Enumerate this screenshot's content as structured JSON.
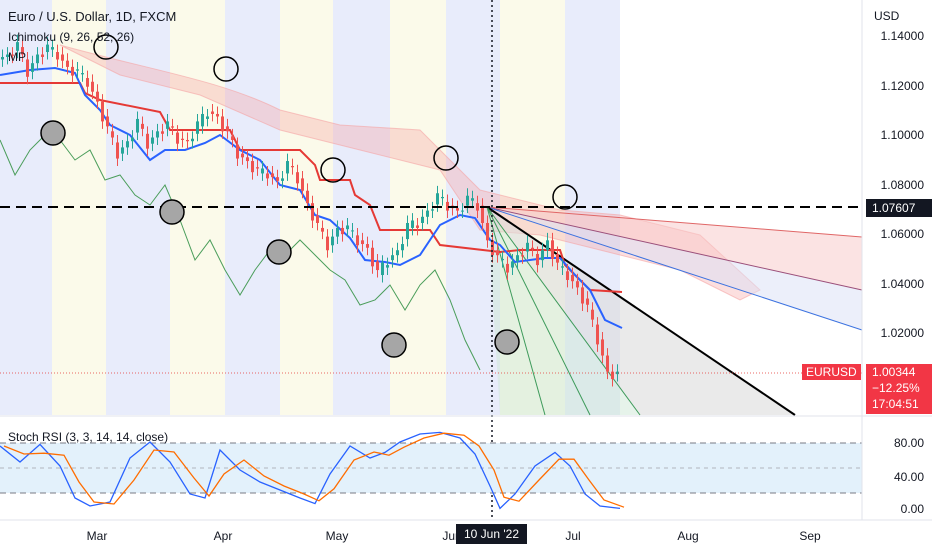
{
  "header": {
    "symbol_line": "Euro / U.S. Dollar, 1D, FXCM",
    "indicator_1": "Ichimoku (9, 26, 52, 26)",
    "indicator_2": "MP",
    "currency": "USD"
  },
  "price_axis": {
    "ticks": [
      "1.14000",
      "1.12000",
      "1.10000",
      "1.08000",
      "1.06000",
      "1.04000",
      "1.02000"
    ],
    "tick_values": [
      1.14,
      1.12,
      1.1,
      1.08,
      1.06,
      1.04,
      1.02
    ],
    "min": 0.9875,
    "max": 1.155
  },
  "labels": {
    "level_value": "1.07607",
    "symbol_tag": "EURUSD",
    "last_price": "1.00344",
    "change_pct": "−12.25%",
    "countdown": "17:04:51",
    "crosshair_date": "10 Jun '22"
  },
  "oscillator": {
    "title": "Stoch RSI (3, 3, 14, 14, close)",
    "ticks": [
      "80.00",
      "40.00",
      "0.00"
    ],
    "tick_values": [
      80,
      40,
      0
    ],
    "upper_band": 80,
    "mid_band": 50,
    "lower_band": 20
  },
  "time_axis": {
    "months": [
      "Mar",
      "Apr",
      "May",
      "Jun",
      "Jul",
      "Aug",
      "Sep"
    ]
  },
  "chart_data": {
    "type": "candlestick",
    "title": "Euro / U.S. Dollar, 1D, FXCM",
    "horizontal_level": 1.07607,
    "last_close": 1.00344,
    "price_series_approx": [
      [
        0,
        1.131
      ],
      [
        10,
        1.133
      ],
      [
        20,
        1.136
      ],
      [
        30,
        1.126
      ],
      [
        40,
        1.133
      ],
      [
        50,
        1.135
      ],
      [
        60,
        1.133
      ],
      [
        70,
        1.128
      ],
      [
        80,
        1.125
      ],
      [
        90,
        1.122
      ],
      [
        100,
        1.114
      ],
      [
        110,
        1.102
      ],
      [
        120,
        1.093
      ],
      [
        130,
        1.098
      ],
      [
        140,
        1.105
      ],
      [
        150,
        1.097
      ],
      [
        160,
        1.102
      ],
      [
        170,
        1.104
      ],
      [
        180,
        1.099
      ],
      [
        190,
        1.098
      ],
      [
        200,
        1.104
      ],
      [
        210,
        1.11
      ],
      [
        220,
        1.108
      ],
      [
        230,
        1.1
      ],
      [
        240,
        1.093
      ],
      [
        250,
        1.09
      ],
      [
        260,
        1.085
      ],
      [
        270,
        1.085
      ],
      [
        280,
        1.082
      ],
      [
        290,
        1.088
      ],
      [
        300,
        1.083
      ],
      [
        310,
        1.073
      ],
      [
        320,
        1.063
      ],
      [
        330,
        1.056
      ],
      [
        340,
        1.063
      ],
      [
        350,
        1.062
      ],
      [
        360,
        1.058
      ],
      [
        370,
        1.055
      ],
      [
        380,
        1.044
      ],
      [
        390,
        1.05
      ],
      [
        400,
        1.054
      ],
      [
        410,
        1.063
      ],
      [
        420,
        1.065
      ],
      [
        430,
        1.07
      ],
      [
        440,
        1.075
      ],
      [
        450,
        1.072
      ],
      [
        460,
        1.07
      ],
      [
        470,
        1.074
      ],
      [
        480,
        1.072
      ],
      [
        490,
        1.058
      ],
      [
        500,
        1.05
      ],
      [
        510,
        1.047
      ],
      [
        520,
        1.052
      ],
      [
        530,
        1.055
      ],
      [
        540,
        1.05
      ],
      [
        550,
        1.058
      ],
      [
        560,
        1.047
      ],
      [
        570,
        1.044
      ],
      [
        580,
        1.039
      ],
      [
        590,
        1.03
      ],
      [
        600,
        1.018
      ],
      [
        610,
        1.005
      ],
      [
        620,
        1.003
      ]
    ],
    "stoch_k_approx": [
      [
        0,
        80
      ],
      [
        20,
        60
      ],
      [
        40,
        82
      ],
      [
        60,
        55
      ],
      [
        75,
        15
      ],
      [
        90,
        5
      ],
      [
        110,
        10
      ],
      [
        130,
        65
      ],
      [
        150,
        85
      ],
      [
        170,
        60
      ],
      [
        190,
        20
      ],
      [
        205,
        15
      ],
      [
        220,
        75
      ],
      [
        240,
        50
      ],
      [
        260,
        35
      ],
      [
        280,
        25
      ],
      [
        300,
        15
      ],
      [
        315,
        8
      ],
      [
        330,
        45
      ],
      [
        350,
        80
      ],
      [
        370,
        65
      ],
      [
        385,
        72
      ],
      [
        400,
        85
      ],
      [
        420,
        95
      ],
      [
        440,
        97
      ],
      [
        460,
        90
      ],
      [
        475,
        70
      ],
      [
        490,
        30
      ],
      [
        500,
        2
      ],
      [
        515,
        20
      ],
      [
        535,
        55
      ],
      [
        555,
        72
      ],
      [
        570,
        55
      ],
      [
        585,
        20
      ],
      [
        600,
        5
      ],
      [
        620,
        2
      ]
    ]
  }
}
